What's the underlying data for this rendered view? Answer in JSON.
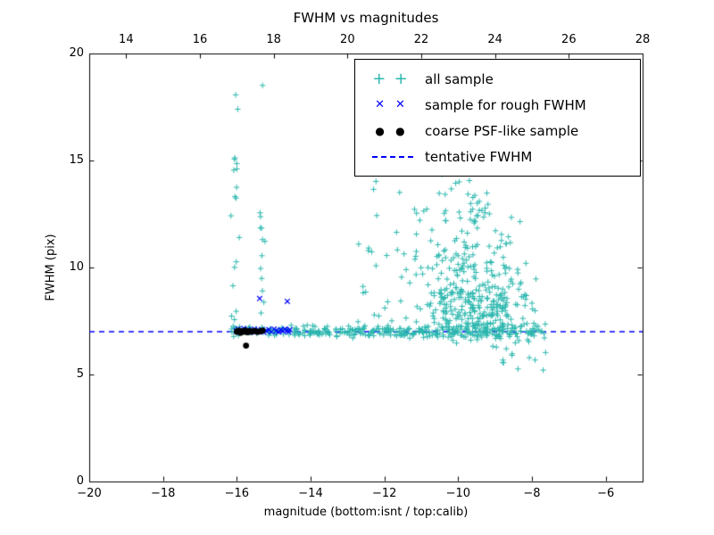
{
  "chart_data": {
    "type": "scatter",
    "title": "FWHM vs magnitudes",
    "xlabel": "magnitude (bottom:isnt / top:calib)",
    "ylabel": "FWHM (pix)",
    "xlim": [
      -20,
      -5
    ],
    "ylim": [
      0,
      20
    ],
    "xticks": [
      -20,
      -18,
      -16,
      -14,
      -12,
      -10,
      -8,
      -6
    ],
    "yticks": [
      0,
      5,
      10,
      15,
      20
    ],
    "top_axis": {
      "lim": [
        13,
        28
      ],
      "ticks": [
        14,
        16,
        18,
        20,
        22,
        24,
        26,
        28
      ]
    },
    "grid": false,
    "legend_position": "upper right",
    "background": "#ffffff",
    "seed": 42,
    "tentative_fwhm": {
      "label": "tentative FWHM",
      "y": 7.0,
      "color": "#0000ff",
      "style": "dashed"
    },
    "series": [
      {
        "name": "all sample",
        "marker": "plus",
        "color": "#2bb7ae",
        "clusters": [
          {
            "n": 60,
            "x": {
              "dist": "uniform",
              "min": -16.15,
              "max": -14.4
            },
            "y": {
              "dist": "normal",
              "mean": 7.05,
              "sd": 0.12
            }
          },
          {
            "n": 150,
            "x": {
              "dist": "uniform",
              "min": -14.5,
              "max": -11.0
            },
            "y": {
              "dist": "normal",
              "mean": 7.0,
              "sd": 0.13
            }
          },
          {
            "n": 140,
            "x": {
              "dist": "uniform",
              "min": -11.0,
              "max": -7.6
            },
            "y": {
              "dist": "normal",
              "mean": 7.0,
              "sd": 0.22
            }
          },
          {
            "n": 16,
            "x": {
              "dist": "normal",
              "mean": -16.05,
              "sd": 0.07
            },
            "y": {
              "dist": "uniform",
              "min": 7.4,
              "max": 15.3
            }
          },
          {
            "n": 3,
            "x": {
              "dist": "uniform",
              "min": -16.2,
              "max": -15.2
            },
            "y": {
              "dist": "uniform",
              "min": 16.5,
              "max": 19.2
            }
          },
          {
            "n": 12,
            "x": {
              "dist": "normal",
              "mean": -15.35,
              "sd": 0.05
            },
            "y": {
              "dist": "uniform",
              "min": 7.4,
              "max": 13.6
            }
          },
          {
            "n": 20,
            "x": {
              "dist": "uniform",
              "min": -12.9,
              "max": -11.5
            },
            "y": {
              "dist": "uniform",
              "min": 7.3,
              "max": 14.2
            }
          },
          {
            "n": 380,
            "x": {
              "dist": "normal",
              "mean": -9.6,
              "sd": 0.85,
              "min": -12.0,
              "max": -7.7
            },
            "y": {
              "dist": "halfnormal",
              "base": 6.9,
              "sd": 2.6,
              "max": 19.8
            }
          },
          {
            "n": 60,
            "x": {
              "dist": "normal",
              "mean": -9.8,
              "sd": 0.55,
              "min": -11.5,
              "max": -8.3
            },
            "y": {
              "dist": "uniform",
              "min": 12.0,
              "max": 19.5
            }
          },
          {
            "n": 14,
            "x": {
              "dist": "uniform",
              "min": -9.6,
              "max": -7.6
            },
            "y": {
              "dist": "uniform",
              "min": 5.0,
              "max": 6.6
            }
          }
        ]
      },
      {
        "name": "sample for rough FWHM",
        "marker": "x",
        "color": "#0000ff",
        "points": [
          [
            -16.02,
            7.04
          ],
          [
            -15.97,
            7.12
          ],
          [
            -15.92,
            6.98
          ],
          [
            -15.87,
            7.08
          ],
          [
            -15.81,
            7.15
          ],
          [
            -15.76,
            7.02
          ],
          [
            -15.7,
            7.1
          ],
          [
            -15.64,
            6.97
          ],
          [
            -15.58,
            7.06
          ],
          [
            -15.52,
            7.12
          ],
          [
            -15.46,
            7.0
          ],
          [
            -15.4,
            7.05
          ],
          [
            -15.33,
            7.1
          ],
          [
            -15.27,
            6.98
          ],
          [
            -15.2,
            7.04
          ],
          [
            -15.13,
            7.09
          ],
          [
            -15.06,
            7.0
          ],
          [
            -14.99,
            7.13
          ],
          [
            -14.93,
            7.05
          ],
          [
            -14.87,
            6.99
          ],
          [
            -14.81,
            7.08
          ],
          [
            -14.75,
            7.03
          ],
          [
            -14.7,
            7.12
          ],
          [
            -14.65,
            7.06
          ],
          [
            -14.6,
            7.0
          ],
          [
            -14.56,
            7.09
          ],
          [
            -15.38,
            8.55
          ],
          [
            -14.63,
            8.42
          ]
        ]
      },
      {
        "name": "coarse PSF-like sample",
        "marker": "dot",
        "color": "#000000",
        "points": [
          [
            -16.0,
            7.0
          ],
          [
            -15.95,
            7.05
          ],
          [
            -15.9,
            6.95
          ],
          [
            -15.86,
            7.02
          ],
          [
            -15.81,
            7.0
          ],
          [
            -15.76,
            7.06
          ],
          [
            -15.71,
            6.97
          ],
          [
            -15.66,
            7.03
          ],
          [
            -15.6,
            7.0
          ],
          [
            -15.52,
            7.04
          ],
          [
            -15.44,
            6.99
          ],
          [
            -15.36,
            7.02
          ],
          [
            -15.3,
            7.05
          ],
          [
            -15.75,
            6.35
          ]
        ]
      }
    ]
  }
}
